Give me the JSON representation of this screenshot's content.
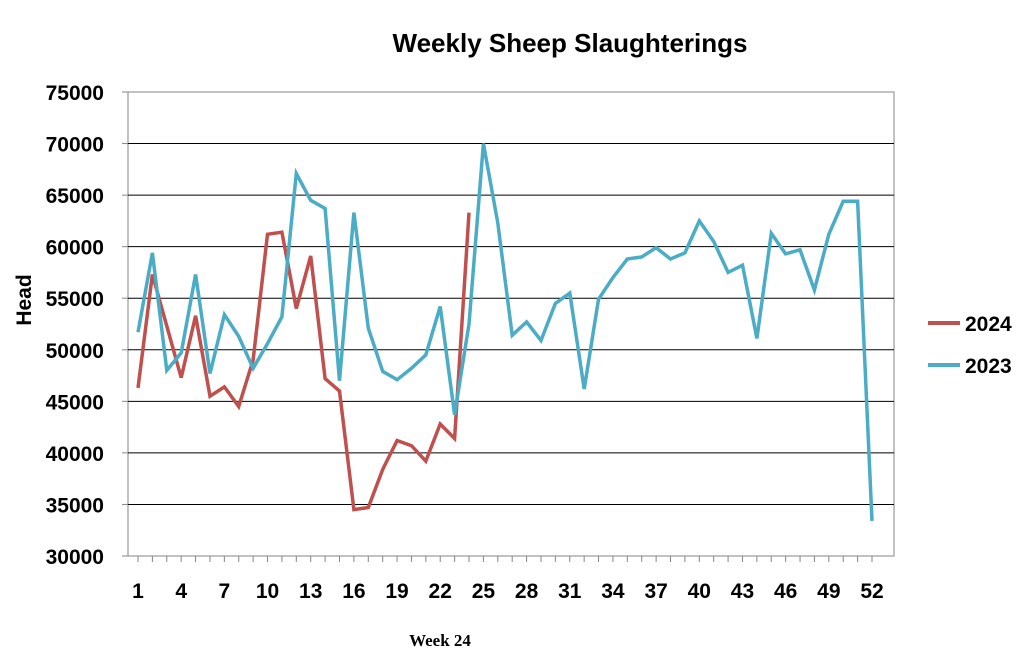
{
  "chart_data": {
    "type": "line",
    "title": "Weekly Sheep Slaughterings",
    "xlabel": "",
    "ylabel": "Head",
    "footnote": "Week 24",
    "ylim": [
      30000,
      75000
    ],
    "yticks": [
      "75000",
      "70000",
      "65000",
      "60000",
      "55000",
      "50000",
      "45000",
      "40000",
      "35000",
      "30000"
    ],
    "xlim": [
      1,
      52
    ],
    "xticks": [
      "1",
      "4",
      "7",
      "10",
      "13",
      "16",
      "19",
      "22",
      "25",
      "28",
      "31",
      "34",
      "37",
      "40",
      "43",
      "46",
      "49",
      "52"
    ],
    "grid": "horizontal",
    "legend_position": "right",
    "series": [
      {
        "name": "2024",
        "color": "#C0504D",
        "x": [
          1,
          2,
          3,
          4,
          5,
          6,
          7,
          8,
          9,
          10,
          11,
          12,
          13,
          14,
          15,
          16,
          17,
          18,
          19,
          20,
          21,
          22,
          23,
          24
        ],
        "values": [
          46300,
          57300,
          52300,
          47300,
          53300,
          45500,
          46400,
          44500,
          49000,
          61200,
          61400,
          54000,
          59100,
          47200,
          46000,
          34500,
          34700,
          38400,
          41200,
          40700,
          39200,
          42800,
          41400,
          63300
        ]
      },
      {
        "name": "2023",
        "color": "#4BACC6",
        "x": [
          1,
          2,
          3,
          4,
          5,
          6,
          7,
          8,
          9,
          10,
          11,
          12,
          13,
          14,
          15,
          16,
          17,
          18,
          19,
          20,
          21,
          22,
          23,
          24,
          25,
          26,
          27,
          28,
          29,
          30,
          31,
          32,
          33,
          34,
          35,
          36,
          37,
          38,
          39,
          40,
          41,
          42,
          43,
          44,
          45,
          46,
          47,
          48,
          49,
          50,
          51,
          52
        ],
        "values": [
          51700,
          59400,
          48000,
          49700,
          57300,
          47700,
          53400,
          51300,
          48200,
          50600,
          53200,
          67100,
          64500,
          63700,
          47000,
          63300,
          52100,
          47900,
          47100,
          48200,
          49500,
          54200,
          43700,
          52500,
          70000,
          62300,
          51400,
          52700,
          50900,
          54500,
          55500,
          46200,
          54900,
          57000,
          58800,
          59000,
          59900,
          58800,
          59400,
          62500,
          60500,
          57500,
          58200,
          51100,
          61300,
          59300,
          59700,
          55800,
          61200,
          64400,
          64400,
          33400
        ]
      }
    ]
  }
}
